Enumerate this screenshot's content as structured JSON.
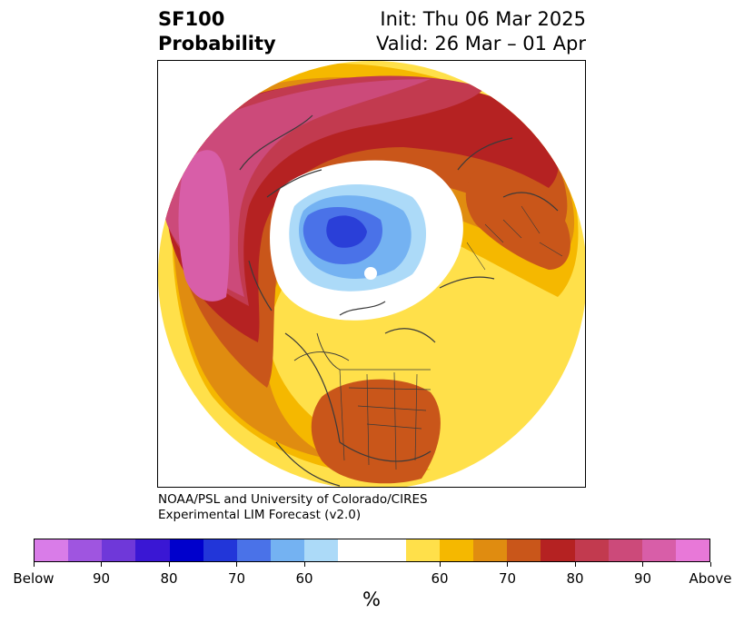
{
  "title": {
    "left_line1": "SF100",
    "left_line2": "Probability",
    "right_line1": "Init: Thu 06 Mar 2025",
    "right_line2": "Valid: 26 Mar – 01 Apr"
  },
  "credit": {
    "line1": "NOAA/PSL and University of Colorado/CIRES",
    "line2": "Experimental LIM Forecast (v2.0)"
  },
  "colorbar": {
    "colors": [
      "#d97ce8",
      "#9f55e0",
      "#6f38d9",
      "#3a17d4",
      "#0000cc",
      "#2236d9",
      "#4a72e8",
      "#74b2f2",
      "#acdaf8",
      "#ffffff",
      "#ffffff",
      "#ffe04a",
      "#f5b800",
      "#e08c10",
      "#c9561a",
      "#b52222",
      "#c23a4f",
      "#cc4a7a",
      "#d85ea8",
      "#e878d8"
    ],
    "tick_labels": [
      "Below",
      "90",
      "80",
      "70",
      "60",
      "60",
      "70",
      "80",
      "90",
      "Above"
    ],
    "unit": "%"
  },
  "map": {
    "projection": "north-polar stereographic",
    "regions": {
      "below_core": "#2a3fd8",
      "below_ring": "#4a72e8",
      "below_outer": "#74b2f2",
      "below_edge": "#acdaf8",
      "above_60": "#ffe04a",
      "above_65": "#f5b800",
      "above_70": "#e08c10",
      "above_75": "#c9561a",
      "above_80": "#b52222",
      "above_85": "#c23a4f",
      "above_90": "#cc4a7a",
      "above_95": "#d85ea8"
    }
  }
}
